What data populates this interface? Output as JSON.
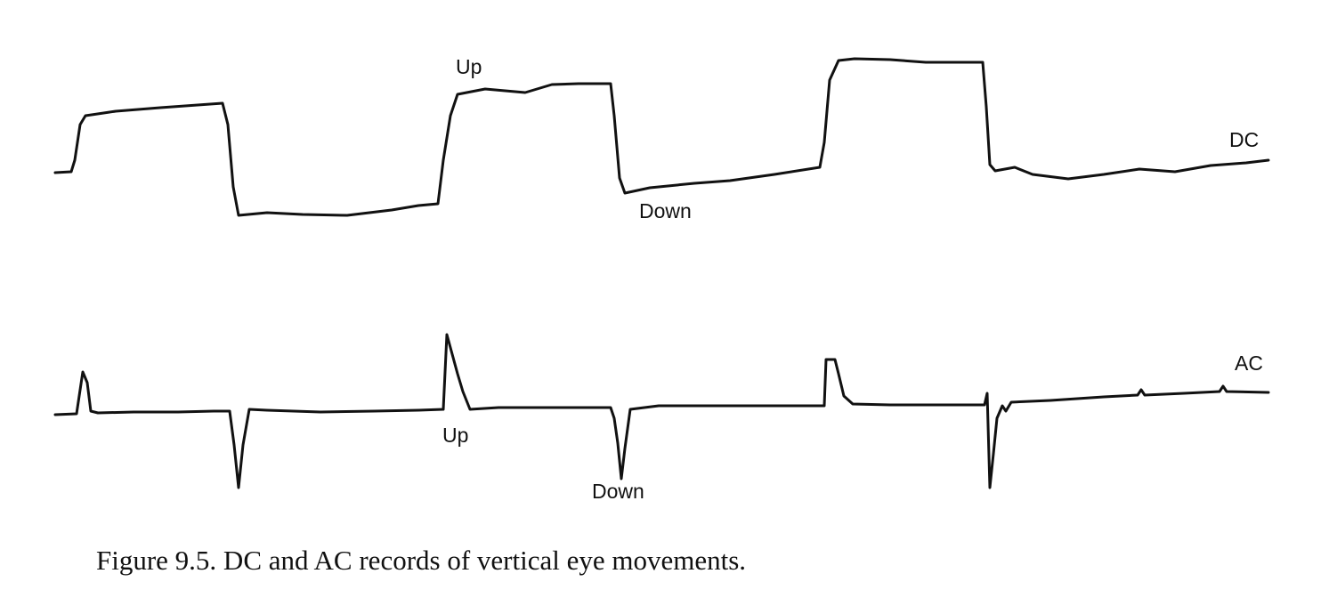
{
  "traces": [
    {
      "id": "dc",
      "label": "DC"
    },
    {
      "id": "ac",
      "label": "AC"
    }
  ],
  "annotations": {
    "dc_up": "Up",
    "dc_down": "Down",
    "ac_up": "Up",
    "ac_down": "Down"
  },
  "caption": "Figure 9.5. DC and AC records of vertical eye movements."
}
